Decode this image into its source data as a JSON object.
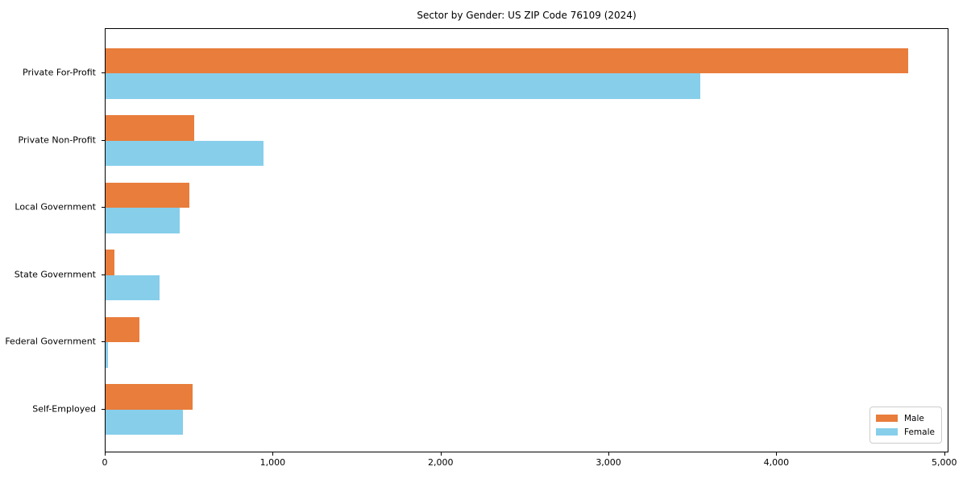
{
  "chart_data": {
    "type": "bar",
    "orientation": "horizontal",
    "title": "Sector by Gender: US ZIP Code 76109 (2024)",
    "categories": [
      "Private For-Profit",
      "Private Non-Profit",
      "Local Government",
      "State Government",
      "Federal Government",
      "Self-Employed"
    ],
    "series": [
      {
        "name": "Male",
        "color": "#e87d3c",
        "values": [
          4780,
          530,
          500,
          55,
          200,
          520
        ]
      },
      {
        "name": "Female",
        "color": "#87ceeb",
        "values": [
          3540,
          940,
          440,
          320,
          15,
          460
        ]
      }
    ],
    "xlabel": "",
    "ylabel": "",
    "xlim": [
      0,
      5025
    ],
    "x_ticks": [
      0,
      1000,
      2000,
      3000,
      4000,
      5000
    ],
    "x_tick_labels": [
      "0",
      "1,000",
      "2,000",
      "3,000",
      "4,000",
      "5,000"
    ],
    "grid": false,
    "legend_position": "lower right",
    "colors": {
      "male": "#e87d3c",
      "female": "#87ceeb",
      "spine": "#000000",
      "background": "#ffffff"
    }
  }
}
